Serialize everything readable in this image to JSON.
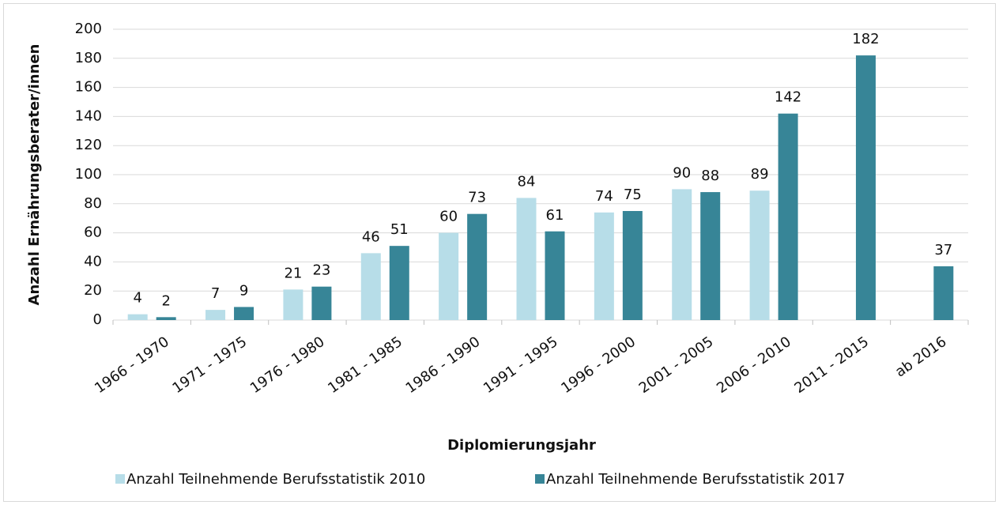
{
  "chart_data": {
    "type": "bar",
    "x_label": "Diplomierungsjahr",
    "y_label": "Anzahl Ernährungsberater/innen",
    "categories": [
      "1966 - 1970",
      "1971 - 1975",
      "1976 - 1980",
      "1981 - 1985",
      "1986 - 1990",
      "1991 - 1995",
      "1996 - 2000",
      "2001 - 2005",
      "2006 - 2010",
      "2011 - 2015",
      "ab 2016"
    ],
    "series": [
      {
        "name": "Anzahl Teilnehmende Berufsstatistik 2010",
        "color": "#b7dde8",
        "values": [
          4,
          7,
          21,
          46,
          60,
          84,
          74,
          90,
          89,
          null,
          null
        ]
      },
      {
        "name": "Anzahl Teilnehmende Berufsstatistik 2017",
        "color": "#378597",
        "values": [
          2,
          9,
          23,
          51,
          73,
          61,
          75,
          88,
          142,
          182,
          37
        ]
      }
    ],
    "ylim": [
      0,
      200
    ],
    "yticks": [
      0,
      20,
      40,
      60,
      80,
      100,
      120,
      140,
      160,
      180,
      200
    ],
    "grid": true,
    "legend": "bottom"
  }
}
